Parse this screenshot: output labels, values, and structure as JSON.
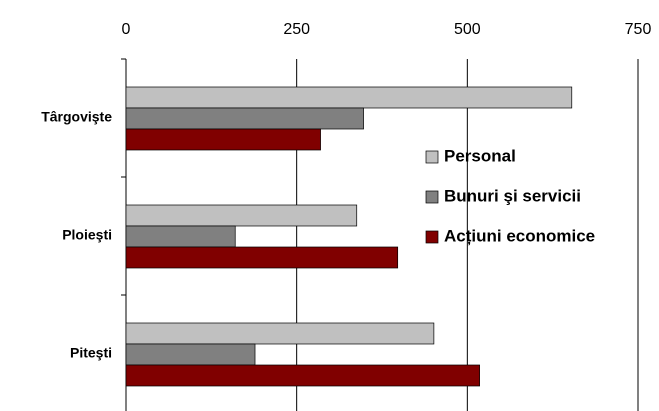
{
  "chart_data": {
    "type": "bar",
    "orientation": "horizontal",
    "categories": [
      "Târgovişte",
      "Ploieşti",
      "Piteşti"
    ],
    "series": [
      {
        "name": "Personal",
        "color": "#c0c0c0",
        "values": [
          653,
          338,
          451
        ]
      },
      {
        "name": "Bunuri şi servicii",
        "color": "#808080",
        "values": [
          348,
          160,
          189
        ]
      },
      {
        "name": "Acțiuni economice",
        "color": "#800000",
        "values": [
          285,
          398,
          518
        ]
      }
    ],
    "xlim": [
      0,
      750
    ],
    "xticks": [
      0,
      250,
      500,
      750
    ],
    "grid": true
  }
}
